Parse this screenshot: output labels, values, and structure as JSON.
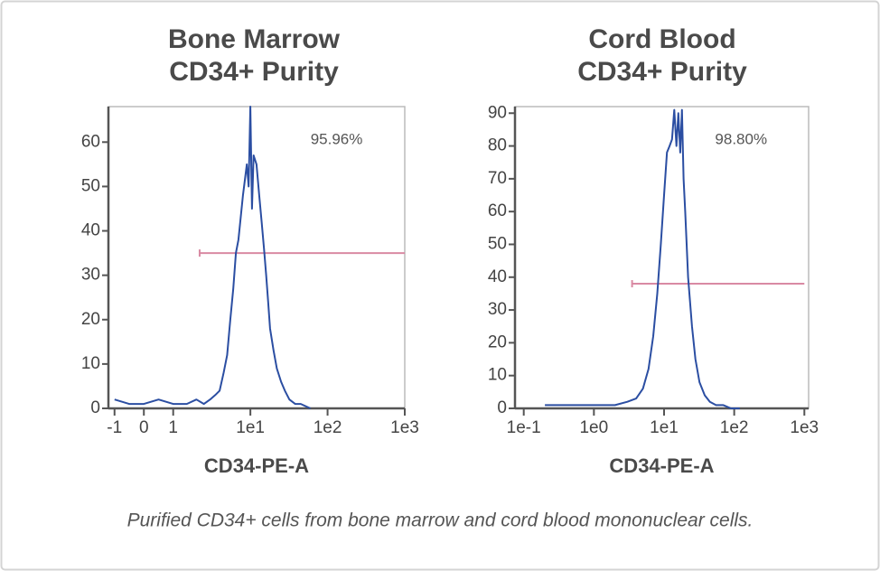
{
  "chart_data": [
    {
      "type": "line",
      "title": [
        "Bone Marrow",
        "CD34+ Purity"
      ],
      "xlabel": "CD34-PE-A",
      "annotation": "95.96%",
      "xscale": "symlog",
      "linthresh": 1,
      "linscale": 0.38,
      "color": "#2b4ea2",
      "xlim": [
        -1.2,
        1000
      ],
      "ylim": [
        0,
        68
      ],
      "xticks": [
        -1,
        0,
        1,
        {
          "value": 10,
          "label": "1e1"
        },
        {
          "value": 100,
          "label": "1e2"
        },
        {
          "value": 1000,
          "label": "1e3"
        }
      ],
      "yticks": [
        0,
        10,
        20,
        30,
        40,
        50,
        60
      ],
      "x": [
        -1,
        -0.5,
        0,
        0.5,
        1,
        1.5,
        2,
        2.5,
        3,
        3.5,
        4,
        4.5,
        5,
        5.5,
        6,
        6.5,
        7,
        8,
        9,
        9.5,
        10,
        10.5,
        11,
        12,
        13,
        14,
        15,
        16,
        17,
        18,
        20,
        22,
        25,
        28,
        32,
        38,
        45,
        60
      ],
      "values": [
        2,
        1,
        1,
        2,
        1,
        1,
        2,
        1,
        2,
        3,
        4,
        8,
        12,
        20,
        27,
        35,
        38,
        48,
        55,
        50,
        68,
        45,
        57,
        55,
        48,
        42,
        36,
        30,
        24,
        18,
        13,
        9,
        6,
        4,
        2,
        1,
        1,
        0
      ],
      "gate": {
        "xlim": [
          2.2,
          1000
        ],
        "y": 35,
        "color": "#d98aa3"
      }
    },
    {
      "type": "line",
      "title": [
        "Cord Blood",
        "CD34+ Purity"
      ],
      "xlabel": "CD34-PE-A",
      "annotation": "98.80%",
      "xscale": "log",
      "color": "#2b4ea2",
      "xlim": [
        0.075,
        1150
      ],
      "ylim": [
        0,
        92
      ],
      "xticks": [
        {
          "value": 0.1,
          "label": "1e-1"
        },
        {
          "value": 1,
          "label": "1e0"
        },
        {
          "value": 10,
          "label": "1e1"
        },
        {
          "value": 100,
          "label": "1e2"
        },
        {
          "value": 1000,
          "label": "1e3"
        }
      ],
      "yticks": [
        0,
        10,
        20,
        30,
        40,
        50,
        60,
        70,
        80,
        90
      ],
      "x": [
        0.2,
        0.3,
        0.5,
        0.8,
        1,
        1.5,
        2,
        3,
        4,
        5,
        6,
        7,
        8,
        9,
        10,
        11,
        12,
        13,
        14,
        15,
        16,
        17,
        18,
        19,
        20,
        22,
        25,
        28,
        32,
        38,
        45,
        55,
        70,
        90,
        120
      ],
      "values": [
        1,
        1,
        1,
        1,
        1,
        1,
        1,
        2,
        3,
        6,
        12,
        22,
        35,
        50,
        65,
        78,
        80,
        82,
        91,
        80,
        90,
        78,
        91,
        70,
        60,
        40,
        25,
        15,
        8,
        4,
        2,
        1,
        1,
        0,
        0
      ],
      "gate": {
        "xlim": [
          3.5,
          1000
        ],
        "y": 38,
        "color": "#d98aa3"
      }
    }
  ],
  "caption": "Purified CD34+ cells from bone marrow and cord blood mononuclear cells."
}
